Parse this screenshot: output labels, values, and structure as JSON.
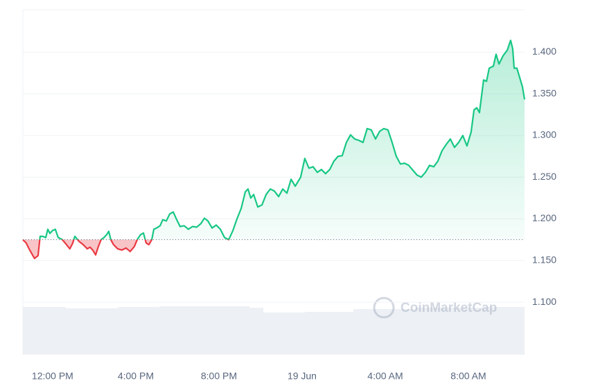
{
  "chart_data": {
    "type": "line",
    "watermark": "CoinMarketCap",
    "x": [
      10.57,
      10.73,
      10.9,
      11.13,
      11.3,
      11.4,
      11.53,
      11.67,
      11.77,
      11.87,
      12.0,
      12.13,
      12.27,
      12.47,
      12.67,
      12.83,
      12.97,
      13.07,
      13.27,
      13.47,
      13.67,
      13.8,
      13.93,
      14.07,
      14.2,
      14.33,
      14.47,
      14.6,
      14.7,
      14.8,
      14.93,
      15.13,
      15.33,
      15.53,
      15.73,
      15.93,
      16.07,
      16.23,
      16.37,
      16.5,
      16.63,
      16.77,
      16.87,
      17.0,
      17.17,
      17.3,
      17.47,
      17.63,
      17.8,
      17.97,
      18.13,
      18.33,
      18.53,
      18.73,
      18.93,
      19.13,
      19.3,
      19.47,
      19.67,
      19.87,
      20.07,
      20.27,
      20.47,
      20.67,
      20.87,
      21.07,
      21.27,
      21.4,
      21.53,
      21.67,
      21.87,
      22.07,
      22.27,
      22.47,
      22.67,
      22.87,
      23.07,
      23.27,
      23.47,
      23.67,
      23.93,
      24.13,
      24.33,
      24.53,
      24.73,
      24.93,
      25.13,
      25.33,
      25.53,
      25.73,
      25.93,
      26.13,
      26.33,
      26.53,
      26.73,
      26.93,
      27.13,
      27.33,
      27.53,
      27.73,
      27.93,
      28.13,
      28.33,
      28.53,
      28.73,
      28.93,
      29.13,
      29.33,
      29.53,
      29.73,
      29.93,
      30.13,
      30.33,
      30.53,
      30.73,
      30.93,
      31.13,
      31.33,
      31.53,
      31.73,
      31.93,
      32.13,
      32.27,
      32.4,
      32.53,
      32.73,
      32.87,
      33.0,
      33.2,
      33.33,
      33.47,
      33.67,
      33.87,
      34.03,
      34.13,
      34.2,
      34.33,
      34.47,
      34.6,
      34.7
    ],
    "series": [
      {
        "values": [
          1.175,
          1.171,
          1.1625,
          1.1525,
          1.1558,
          1.179,
          1.179,
          1.1775,
          1.1875,
          1.1825,
          1.186,
          1.1875,
          1.1775,
          1.175,
          1.169,
          1.164,
          1.171,
          1.179,
          1.173,
          1.169,
          1.164,
          1.166,
          1.1625,
          1.1567,
          1.1667,
          1.175,
          1.1775,
          1.181,
          1.185,
          1.175,
          1.169,
          1.164,
          1.1625,
          1.165,
          1.1608,
          1.1667,
          1.175,
          1.181,
          1.183,
          1.171,
          1.169,
          1.175,
          1.1875,
          1.189,
          1.1917,
          1.199,
          1.1975,
          1.2058,
          1.2083,
          1.199,
          1.1908,
          1.1917,
          1.1875,
          1.1908,
          1.19,
          1.1942,
          1.2008,
          1.1975,
          1.189,
          1.1925,
          1.1875,
          1.1775,
          1.175,
          1.1858,
          1.2,
          1.2125,
          1.2325,
          1.2358,
          1.225,
          1.2292,
          1.2142,
          1.2167,
          1.2292,
          1.2358,
          1.2333,
          1.2267,
          1.2358,
          1.2308,
          1.2475,
          1.2392,
          1.25,
          1.2725,
          1.2608,
          1.2625,
          1.2558,
          1.2592,
          1.2542,
          1.2592,
          1.2692,
          1.275,
          1.2758,
          1.2917,
          1.3008,
          1.2958,
          1.2942,
          1.2917,
          1.3083,
          1.3067,
          1.2958,
          1.305,
          1.3083,
          1.3067,
          1.2917,
          1.275,
          1.2658,
          1.2667,
          1.2642,
          1.2583,
          1.2525,
          1.25,
          1.2558,
          1.2642,
          1.2625,
          1.2692,
          1.2817,
          1.2892,
          1.2958,
          1.2858,
          1.2917,
          1.3,
          1.2875,
          1.3042,
          1.3308,
          1.3333,
          1.3275,
          1.3667,
          1.365,
          1.3808,
          1.3833,
          1.3975,
          1.3858,
          1.3958,
          1.4025,
          1.4142,
          1.4042,
          1.3808,
          1.3808,
          1.3692,
          1.3583,
          1.3433
        ]
      }
    ],
    "baseline": 1.175,
    "up_color": "#16c784",
    "down_color": "#ea3943",
    "xlim": [
      10.57,
      34.7
    ],
    "xticks": [
      {
        "value": 12,
        "label": "12:00 PM"
      },
      {
        "value": 16,
        "label": "4:00 PM"
      },
      {
        "value": 20,
        "label": "8:00 PM"
      },
      {
        "value": 24,
        "label": "19 Jun"
      },
      {
        "value": 28,
        "label": "4:00 AM"
      },
      {
        "value": 32,
        "label": "8:00 AM"
      }
    ],
    "ylim": [
      1.037,
      1.451
    ],
    "yticks": [
      {
        "value": 1.1,
        "label": "1.100"
      },
      {
        "value": 1.15,
        "label": "1.150"
      },
      {
        "value": 1.2,
        "label": "1.200"
      },
      {
        "value": 1.25,
        "label": "1.250"
      },
      {
        "value": 1.3,
        "label": "1.300"
      },
      {
        "value": 1.35,
        "label": "1.350"
      },
      {
        "value": 1.4,
        "label": "1.400"
      }
    ],
    "grid": true
  }
}
